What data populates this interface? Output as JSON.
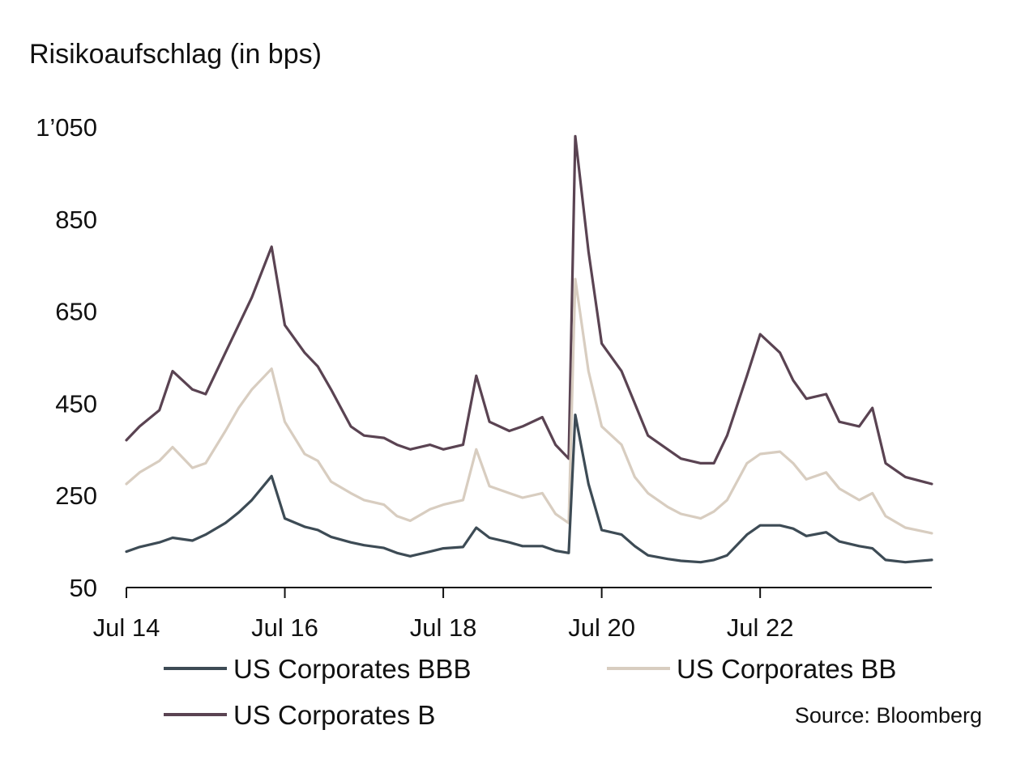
{
  "chart_data": {
    "type": "line",
    "title": "",
    "ylabel": "Risikoaufschlag (in bps)",
    "xlabel": "",
    "ylim": [
      50,
      1050
    ],
    "yticks": [
      50,
      250,
      450,
      650,
      850,
      1050
    ],
    "ytick_labels": [
      "50",
      "250",
      "450",
      "650",
      "850",
      "1’050"
    ],
    "xlim": [
      "2014-07",
      "2024-09"
    ],
    "xticks": [
      "2014-07",
      "2016-07",
      "2018-07",
      "2020-07",
      "2022-07"
    ],
    "xtick_labels": [
      "Jul 14",
      "Jul 16",
      "Jul 18",
      "Jul 20",
      "Jul 22"
    ],
    "grid": false,
    "legend_position": "bottom",
    "source": "Source: Bloomberg",
    "colors": {
      "US Corporates BBB": "#3d4b55",
      "US Corporates BB": "#d8cdc0",
      "US Corporates B": "#5a4352"
    },
    "x": [
      "2014-07",
      "2014-09",
      "2014-12",
      "2015-02",
      "2015-05",
      "2015-07",
      "2015-10",
      "2015-12",
      "2016-02",
      "2016-05",
      "2016-07",
      "2016-10",
      "2016-12",
      "2017-02",
      "2017-05",
      "2017-07",
      "2017-10",
      "2017-12",
      "2018-02",
      "2018-05",
      "2018-07",
      "2018-10",
      "2018-12",
      "2019-02",
      "2019-05",
      "2019-07",
      "2019-10",
      "2019-12",
      "2020-02",
      "2020-03",
      "2020-05",
      "2020-07",
      "2020-10",
      "2020-12",
      "2021-02",
      "2021-05",
      "2021-07",
      "2021-10",
      "2021-12",
      "2022-02",
      "2022-05",
      "2022-07",
      "2022-10",
      "2022-12",
      "2023-02",
      "2023-05",
      "2023-07",
      "2023-10",
      "2023-12",
      "2024-02",
      "2024-05",
      "2024-09"
    ],
    "series": [
      {
        "name": "US Corporates BBB",
        "values": [
          128,
          138,
          148,
          158,
          152,
          165,
          190,
          213,
          240,
          292,
          200,
          182,
          175,
          160,
          148,
          142,
          136,
          125,
          118,
          128,
          135,
          138,
          180,
          158,
          148,
          140,
          140,
          130,
          125,
          425,
          275,
          175,
          165,
          140,
          120,
          112,
          108,
          105,
          110,
          120,
          165,
          185,
          185,
          178,
          162,
          170,
          150,
          140,
          135,
          110,
          105,
          110
        ]
      },
      {
        "name": "US Corporates BB",
        "values": [
          275,
          300,
          325,
          355,
          310,
          320,
          390,
          440,
          480,
          525,
          410,
          340,
          325,
          280,
          255,
          240,
          230,
          205,
          195,
          220,
          230,
          240,
          350,
          270,
          255,
          245,
          255,
          210,
          190,
          720,
          520,
          400,
          360,
          290,
          255,
          225,
          210,
          200,
          215,
          240,
          320,
          340,
          345,
          320,
          285,
          300,
          265,
          240,
          255,
          205,
          180,
          168
        ]
      },
      {
        "name": "US Corporates B",
        "values": [
          370,
          400,
          435,
          520,
          480,
          470,
          560,
          620,
          680,
          790,
          620,
          560,
          530,
          480,
          400,
          380,
          375,
          360,
          350,
          360,
          350,
          360,
          510,
          410,
          390,
          400,
          420,
          360,
          330,
          1030,
          780,
          580,
          520,
          450,
          380,
          350,
          330,
          320,
          320,
          380,
          510,
          600,
          560,
          500,
          460,
          470,
          410,
          400,
          440,
          320,
          290,
          275
        ]
      }
    ]
  }
}
